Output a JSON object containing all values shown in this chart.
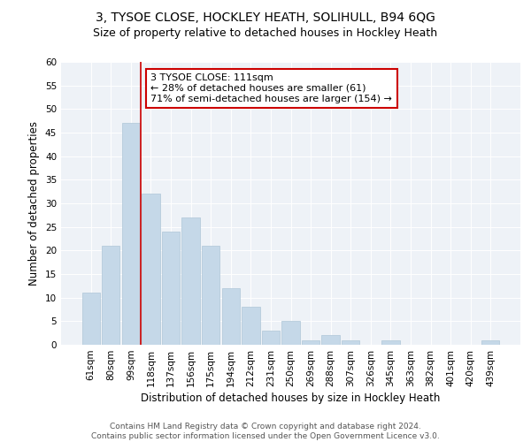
{
  "title1": "3, TYSOE CLOSE, HOCKLEY HEATH, SOLIHULL, B94 6QG",
  "title2": "Size of property relative to detached houses in Hockley Heath",
  "xlabel": "Distribution of detached houses by size in Hockley Heath",
  "ylabel": "Number of detached properties",
  "categories": [
    "61sqm",
    "80sqm",
    "99sqm",
    "118sqm",
    "137sqm",
    "156sqm",
    "175sqm",
    "194sqm",
    "212sqm",
    "231sqm",
    "250sqm",
    "269sqm",
    "288sqm",
    "307sqm",
    "326sqm",
    "345sqm",
    "363sqm",
    "382sqm",
    "401sqm",
    "420sqm",
    "439sqm"
  ],
  "values": [
    11,
    21,
    47,
    32,
    24,
    27,
    21,
    12,
    8,
    3,
    5,
    1,
    2,
    1,
    0,
    1,
    0,
    0,
    0,
    0,
    1
  ],
  "bar_color": "#c5d8e8",
  "bar_edge_color": "#aec6d8",
  "vline_x": 2.5,
  "vline_color": "#cc0000",
  "annotation_text": "3 TYSOE CLOSE: 111sqm\n← 28% of detached houses are smaller (61)\n71% of semi-detached houses are larger (154) →",
  "annotation_box_color": "#ffffff",
  "annotation_box_edge": "#cc0000",
  "footer": "Contains HM Land Registry data © Crown copyright and database right 2024.\nContains public sector information licensed under the Open Government Licence v3.0.",
  "ylim": [
    0,
    60
  ],
  "yticks": [
    0,
    5,
    10,
    15,
    20,
    25,
    30,
    35,
    40,
    45,
    50,
    55,
    60
  ],
  "plot_bg_color": "#eef2f7",
  "title1_fontsize": 10,
  "title2_fontsize": 9,
  "xlabel_fontsize": 8.5,
  "ylabel_fontsize": 8.5,
  "tick_fontsize": 7.5,
  "footer_fontsize": 6.5,
  "annotation_fontsize": 8
}
